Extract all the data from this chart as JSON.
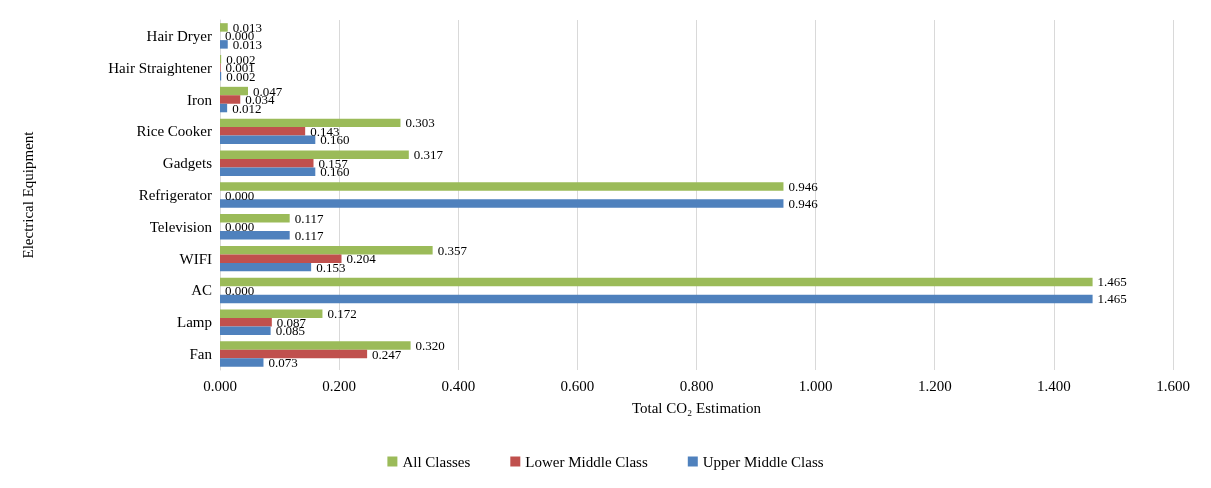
{
  "chart_data": {
    "type": "bar",
    "orientation": "horizontal",
    "xlabel": "Total CO₂ Estimation",
    "ylabel": "Electrical Equipment",
    "categories": [
      "Hair Dryer",
      "Hair Straightener",
      "Iron",
      "Rice Cooker",
      "Gadgets",
      "Refrigerator",
      "Television",
      "WIFI",
      "AC",
      "Lamp",
      "Fan"
    ],
    "series": [
      {
        "name": "All Classes",
        "color": "#9bbb59",
        "values": [
          0.013,
          0.002,
          0.047,
          0.303,
          0.317,
          0.946,
          0.117,
          0.357,
          1.465,
          0.172,
          0.32
        ],
        "value_labels": [
          "0.013",
          "0.002",
          "0.047",
          "0.303",
          "0.317",
          "0.946",
          "0.117",
          "0.357",
          "1.465",
          "0.172",
          "0.320"
        ]
      },
      {
        "name": "Lower Middle Class",
        "color": "#c0504d",
        "values": [
          0,
          0.001,
          0.034,
          0.143,
          0.157,
          0,
          0,
          0.204,
          0,
          0.087,
          0.247
        ],
        "value_labels": [
          "0.000",
          "0.001",
          "0.034",
          "0.143",
          "0.157",
          "0.000",
          "0.000",
          "0.204",
          "0.000",
          "0.087",
          "0.247"
        ]
      },
      {
        "name": "Upper Middle Class",
        "color": "#4f81bd",
        "values": [
          0.013,
          0.002,
          0.012,
          0.16,
          0.16,
          0.946,
          0.117,
          0.153,
          1.465,
          0.085,
          0.073
        ],
        "value_labels": [
          "0.013",
          "0.002",
          "0.012",
          "0.160",
          "0.160",
          "0.946",
          "0.117",
          "0.153",
          "1.465",
          "0.085",
          "0.073"
        ]
      }
    ],
    "xlim": [
      0,
      1.6
    ],
    "xticks": [
      {
        "value": 0,
        "label": "0.000"
      },
      {
        "value": 0.2,
        "label": "0.200"
      },
      {
        "value": 0.4,
        "label": "0.400"
      },
      {
        "value": 0.6,
        "label": "0.600"
      },
      {
        "value": 0.8,
        "label": "0.800"
      },
      {
        "value": 1,
        "label": "1.000"
      },
      {
        "value": 1.2,
        "label": "1.200"
      },
      {
        "value": 1.4,
        "label": "1.400"
      },
      {
        "value": 1.6,
        "label": "1.600"
      }
    ],
    "grid": "x",
    "legend": "bottom"
  }
}
